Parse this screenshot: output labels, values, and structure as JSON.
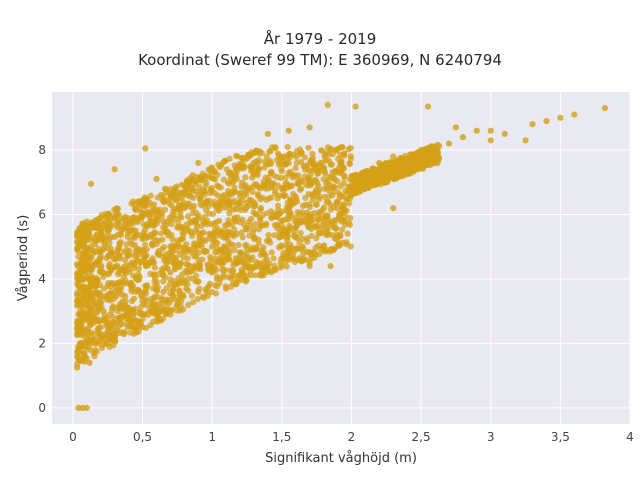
{
  "chart_data": {
    "type": "scatter",
    "title": "År 1979 - 2019",
    "subtitle": "Koordinat (Sweref 99 TM): E 360969, N 6240794",
    "xlabel": "Signifikant våghöjd (m)",
    "ylabel": "Vågperiod (s)",
    "xlim": [
      -0.15,
      4.0
    ],
    "ylim": [
      -0.5,
      9.8
    ],
    "xticks": [
      "0",
      "0,5",
      "1",
      "1,5",
      "2",
      "2,5",
      "3",
      "3,5",
      "4"
    ],
    "xtick_values": [
      0,
      0.5,
      1,
      1.5,
      2,
      2.5,
      3,
      3.5,
      4
    ],
    "yticks": [
      "0",
      "2",
      "4",
      "6",
      "8"
    ],
    "ytick_values": [
      0,
      2,
      4,
      6,
      8
    ],
    "grid": true,
    "marker_color": "#D4A017",
    "plot_background": "#E9E9F1",
    "series": [
      {
        "values": [
          [
            0.03,
            1.25
          ],
          [
            0.05,
            1.5
          ],
          [
            0.06,
            1.9
          ],
          [
            0.07,
            2.4
          ],
          [
            0.08,
            2.8
          ],
          [
            0.09,
            3.2
          ],
          [
            0.1,
            3.6
          ],
          [
            0.08,
            4.0
          ],
          [
            0.1,
            4.4
          ],
          [
            0.09,
            4.8
          ],
          [
            0.1,
            5.2
          ],
          [
            0.12,
            5.6
          ],
          [
            0.12,
            1.4
          ],
          [
            0.15,
            1.7
          ],
          [
            0.18,
            2.0
          ],
          [
            0.2,
            2.5
          ],
          [
            0.22,
            3.0
          ],
          [
            0.25,
            3.5
          ],
          [
            0.22,
            4.2
          ],
          [
            0.28,
            4.8
          ],
          [
            0.3,
            5.3
          ],
          [
            0.3,
            2.2
          ],
          [
            0.35,
            2.6
          ],
          [
            0.4,
            3.1
          ],
          [
            0.45,
            3.6
          ],
          [
            0.4,
            4.3
          ],
          [
            0.5,
            4.9
          ],
          [
            0.45,
            5.5
          ],
          [
            0.55,
            6.0
          ],
          [
            0.5,
            2.5
          ],
          [
            0.6,
            3.0
          ],
          [
            0.65,
            3.6
          ],
          [
            0.7,
            4.2
          ],
          [
            0.7,
            5.0
          ],
          [
            0.75,
            5.6
          ],
          [
            0.8,
            6.2
          ],
          [
            0.85,
            6.8
          ],
          [
            0.75,
            3.2
          ],
          [
            0.9,
            3.6
          ],
          [
            1.0,
            4.2
          ],
          [
            1.0,
            5.0
          ],
          [
            1.05,
            5.8
          ],
          [
            1.1,
            6.4
          ],
          [
            1.15,
            7.0
          ],
          [
            1.2,
            7.5
          ],
          [
            1.1,
            3.7
          ],
          [
            1.25,
            4.1
          ],
          [
            1.4,
            4.4
          ],
          [
            1.3,
            5.3
          ],
          [
            1.35,
            6.2
          ],
          [
            1.5,
            6.8
          ],
          [
            1.6,
            7.2
          ],
          [
            1.55,
            4.6
          ],
          [
            1.7,
            4.4
          ],
          [
            1.6,
            5.6
          ],
          [
            1.75,
            6.3
          ],
          [
            1.85,
            6.9
          ],
          [
            1.95,
            7.2
          ],
          [
            2.1,
            7.3
          ],
          [
            2.2,
            7.6
          ],
          [
            2.3,
            7.8
          ],
          [
            2.4,
            7.6
          ],
          [
            2.5,
            8.0
          ],
          [
            2.6,
            8.1
          ],
          [
            2.7,
            8.2
          ],
          [
            2.8,
            8.4
          ],
          [
            2.9,
            8.6
          ],
          [
            3.0,
            8.3
          ],
          [
            3.1,
            8.5
          ],
          [
            3.3,
            8.8
          ],
          [
            3.4,
            8.9
          ],
          [
            3.5,
            9.0
          ],
          [
            3.6,
            9.1
          ],
          [
            3.82,
            9.3
          ],
          [
            1.83,
            9.4
          ],
          [
            2.03,
            9.35
          ],
          [
            2.55,
            9.35
          ],
          [
            0.52,
            8.05
          ],
          [
            0.3,
            7.4
          ],
          [
            0.13,
            6.95
          ],
          [
            0.1,
            0.0
          ],
          [
            0.04,
            0.0
          ],
          [
            0.07,
            0.0
          ],
          [
            1.85,
            4.4
          ],
          [
            1.7,
            4.5
          ],
          [
            1.8,
            5.0
          ],
          [
            2.3,
            6.2
          ],
          [
            2.0,
            6.6
          ],
          [
            2.25,
            7.0
          ],
          [
            1.4,
            8.5
          ],
          [
            1.55,
            8.6
          ],
          [
            1.7,
            8.7
          ],
          [
            2.75,
            8.7
          ],
          [
            3.0,
            8.6
          ],
          [
            3.25,
            8.3
          ],
          [
            1.3,
            7.9
          ],
          [
            0.9,
            7.6
          ],
          [
            0.6,
            7.1
          ],
          [
            0.2,
            5.9
          ],
          [
            0.15,
            5.6
          ]
        ]
      }
    ]
  }
}
